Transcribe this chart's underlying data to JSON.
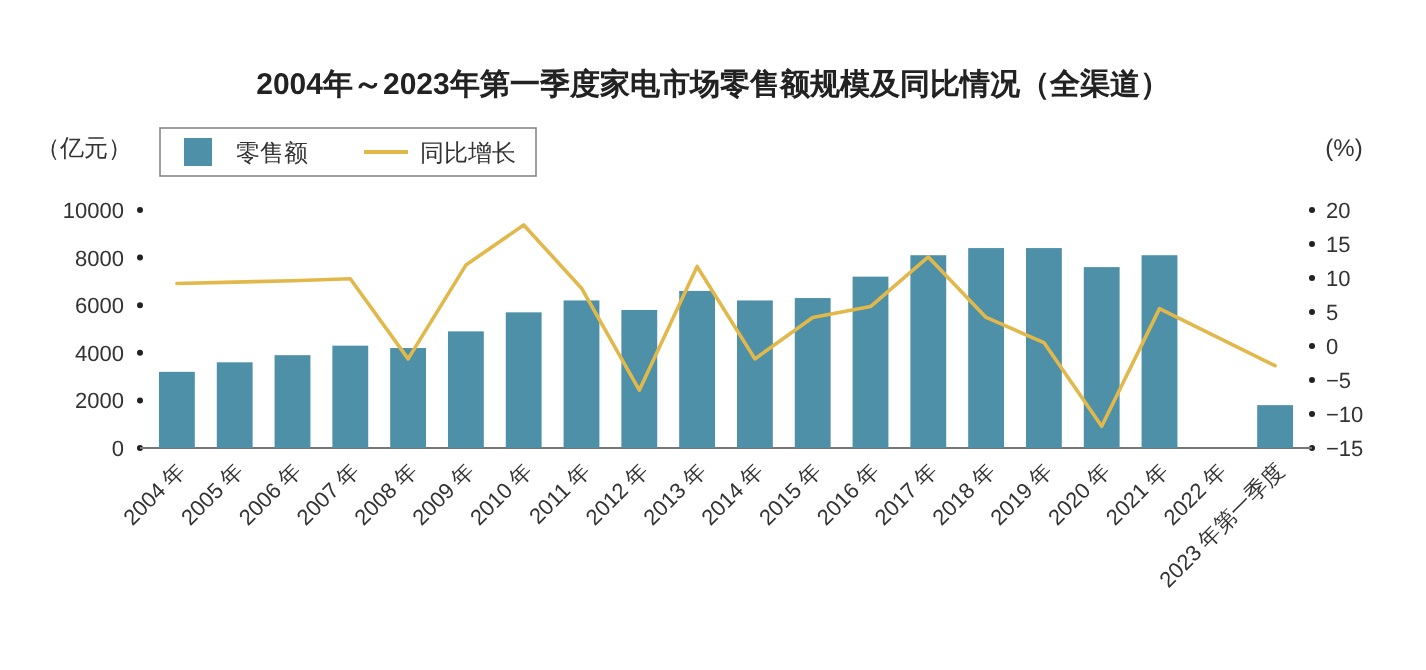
{
  "chart_data": {
    "type": "bar",
    "title": "2004年～2023年第一季度家电市场零售额规模及同比情况（全渠道）",
    "ylabel": "（亿元）",
    "y2label": "(%)",
    "categories": [
      "2004 年",
      "2005 年",
      "2006 年",
      "2007 年",
      "2008 年",
      "2009 年",
      "2010 年",
      "2011 年",
      "2012 年",
      "2013 年",
      "2014 年",
      "2015 年",
      "2016 年",
      "2017 年",
      "2018 年",
      "2019 年",
      "2020 年",
      "2021 年",
      "2022 年",
      "2023 年第一季度"
    ],
    "series": [
      {
        "name": "零售额",
        "color": "#4d90a8",
        "values": [
          3200,
          3600,
          3900,
          4300,
          4200,
          4900,
          5700,
          6200,
          5800,
          6600,
          6200,
          6300,
          7200,
          8100,
          8400,
          8400,
          7600,
          8100,
          null,
          1800
        ]
      },
      {
        "name": "同比增长",
        "type": "line",
        "axis": "y2",
        "color": "#e2b84a",
        "values": [
          9.2,
          9.4,
          9.6,
          9.9,
          -1.9,
          11.9,
          17.8,
          8.5,
          -6.5,
          11.7,
          -1.9,
          4.2,
          5.8,
          13.1,
          4.2,
          0.5,
          -11.8,
          5.5,
          null,
          -2.9
        ]
      }
    ],
    "ylim": [
      0,
      10000
    ],
    "yticks": [
      0,
      2000,
      4000,
      6000,
      8000,
      10000
    ],
    "y2lim": [
      -15,
      20
    ],
    "y2ticks": [
      -15,
      -10,
      -5,
      0,
      5,
      10,
      15,
      20
    ],
    "legend": "top left",
    "grid": false
  }
}
